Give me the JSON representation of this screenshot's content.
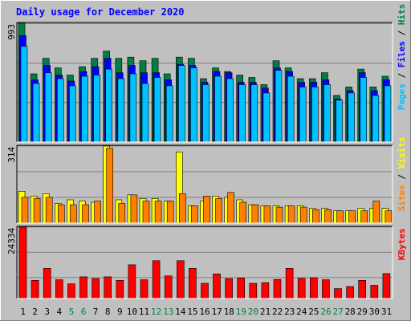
{
  "title": "Daily usage for December 2020",
  "colors": {
    "background": "#c0c0c0",
    "title": "#0000ff",
    "hits": "#008040",
    "files": "#0000ff",
    "pages": "#00c0ff",
    "visits": "#ffff00",
    "sites": "#ff8000",
    "kbytes": "#ff0000",
    "weekend_day": "#008040",
    "weekday": "#000000"
  },
  "chart_data": [
    {
      "type": "bar",
      "panel": "hits-files-pages",
      "ymax_label": "993",
      "ylim": [
        0,
        993
      ],
      "legend": {
        "pages": "Pages",
        "files": "Files",
        "hits": "Hits",
        "sep": " / "
      },
      "categories": [
        "1",
        "2",
        "3",
        "4",
        "5",
        "6",
        "7",
        "8",
        "9",
        "10",
        "11",
        "12",
        "13",
        "14",
        "15",
        "16",
        "17",
        "18",
        "19",
        "20",
        "21",
        "22",
        "23",
        "24",
        "25",
        "26",
        "27",
        "28",
        "29",
        "30",
        "31"
      ],
      "weekend": [
        5,
        6,
        12,
        13,
        19,
        20,
        26,
        27
      ],
      "series": [
        {
          "name": "Hits",
          "values": [
            993,
            570,
            700,
            620,
            560,
            630,
            700,
            760,
            700,
            710,
            680,
            700,
            570,
            710,
            700,
            530,
            620,
            590,
            560,
            540,
            480,
            680,
            620,
            530,
            530,
            580,
            390,
            460,
            610,
            460,
            550
          ]
        },
        {
          "name": "Files",
          "values": [
            890,
            520,
            640,
            560,
            510,
            590,
            630,
            700,
            580,
            640,
            580,
            580,
            520,
            650,
            640,
            500,
            590,
            580,
            500,
            500,
            450,
            620,
            590,
            500,
            500,
            520,
            360,
            430,
            580,
            430,
            520
          ]
        },
        {
          "name": "Pages",
          "values": [
            800,
            490,
            580,
            530,
            470,
            550,
            560,
            610,
            530,
            570,
            490,
            540,
            470,
            640,
            620,
            480,
            550,
            530,
            480,
            480,
            410,
            600,
            550,
            460,
            460,
            480,
            350,
            410,
            540,
            390,
            470
          ]
        }
      ]
    },
    {
      "type": "bar",
      "panel": "visits-sites",
      "ymax_label": "314",
      "ylim": [
        0,
        314
      ],
      "legend": {
        "sites": "Sites",
        "visits": "Visits",
        "sep": " / "
      },
      "categories": [
        "1",
        "2",
        "3",
        "4",
        "5",
        "6",
        "7",
        "8",
        "9",
        "10",
        "11",
        "12",
        "13",
        "14",
        "15",
        "16",
        "17",
        "18",
        "19",
        "20",
        "21",
        "22",
        "23",
        "24",
        "25",
        "26",
        "27",
        "28",
        "29",
        "30",
        "31"
      ],
      "series": [
        {
          "name": "Visits",
          "values": [
            130,
            110,
            120,
            80,
            95,
            90,
            85,
            314,
            95,
            115,
            100,
            100,
            90,
            290,
            70,
            90,
            110,
            105,
            95,
            75,
            70,
            70,
            70,
            70,
            60,
            60,
            50,
            50,
            60,
            60,
            60
          ]
        },
        {
          "name": "Sites",
          "values": [
            105,
            100,
            105,
            75,
            75,
            75,
            90,
            305,
            80,
            115,
            90,
            90,
            90,
            120,
            70,
            110,
            100,
            125,
            85,
            75,
            70,
            65,
            70,
            65,
            55,
            55,
            50,
            50,
            50,
            90,
            50
          ]
        }
      ]
    },
    {
      "type": "bar",
      "panel": "kbytes",
      "ymax_label": "24334",
      "ylim": [
        0,
        24334
      ],
      "legend": {
        "kbytes": "KBytes"
      },
      "categories": [
        "1",
        "2",
        "3",
        "4",
        "5",
        "6",
        "7",
        "8",
        "9",
        "10",
        "11",
        "12",
        "13",
        "14",
        "15",
        "16",
        "17",
        "18",
        "19",
        "20",
        "21",
        "22",
        "23",
        "24",
        "25",
        "26",
        "27",
        "28",
        "29",
        "30",
        "31"
      ],
      "series": [
        {
          "name": "KBytes",
          "values": [
            24334,
            6200,
            10300,
            6400,
            5000,
            7400,
            6800,
            7400,
            6200,
            11500,
            6400,
            12900,
            7700,
            12900,
            10300,
            5200,
            8400,
            6800,
            7000,
            5200,
            5400,
            6500,
            10300,
            6900,
            7100,
            6400,
            3400,
            4100,
            6200,
            4500,
            8500
          ]
        }
      ]
    }
  ]
}
